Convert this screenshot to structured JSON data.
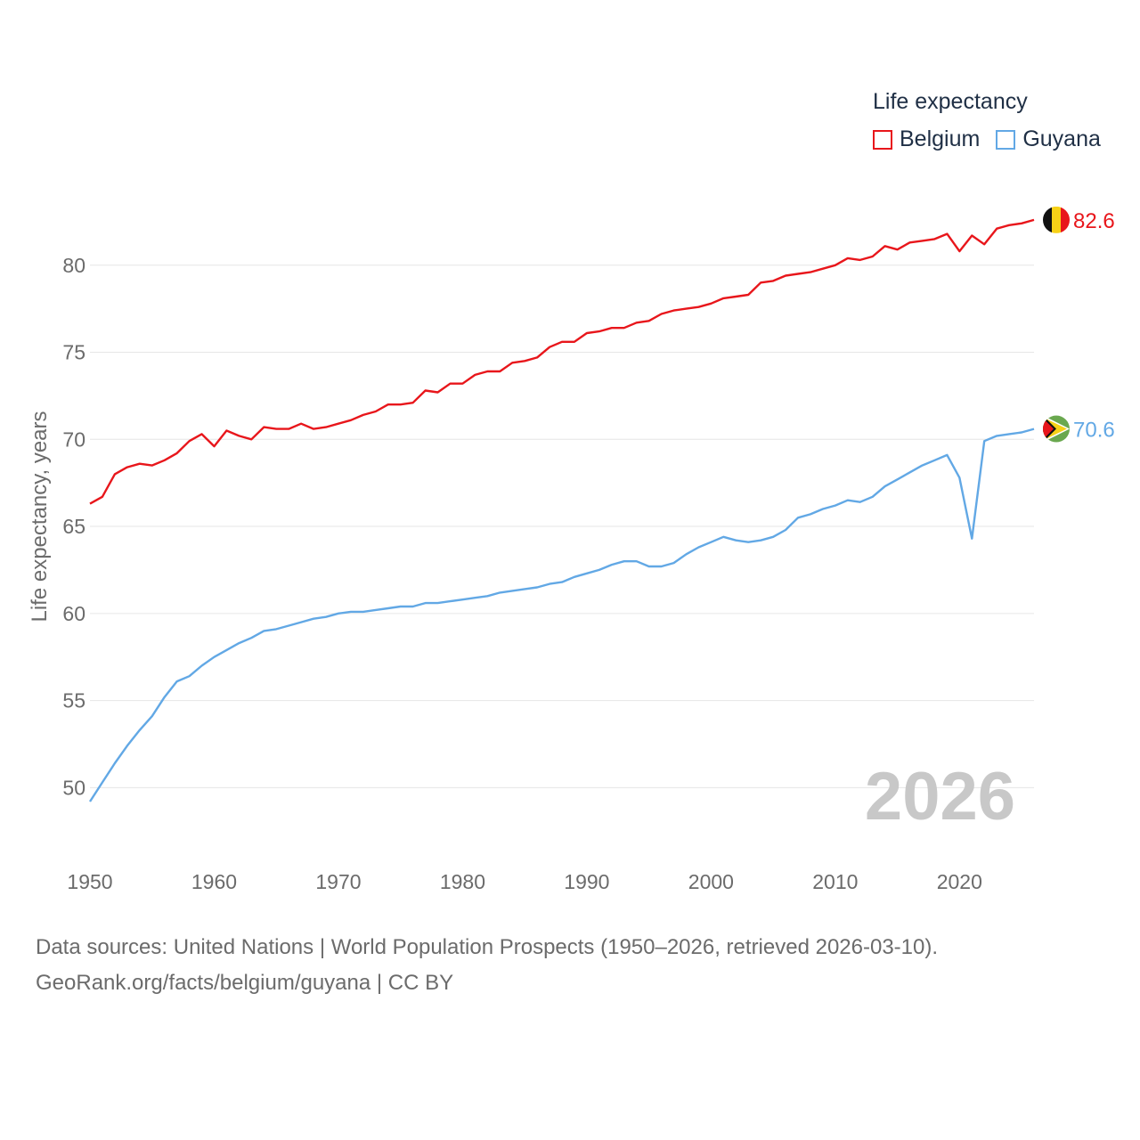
{
  "chart_data": {
    "type": "line",
    "legend_title": "Life expectancy",
    "ylabel": "Life expectancy, years",
    "xlabel": "",
    "ylim": [
      47,
      85
    ],
    "xlim": [
      1950,
      2026
    ],
    "yticks": [
      50,
      55,
      60,
      65,
      70,
      75,
      80
    ],
    "xticks": [
      1950,
      1960,
      1970,
      1980,
      1990,
      2000,
      2010,
      2020
    ],
    "year_label": "2026",
    "x": [
      1950,
      1951,
      1952,
      1953,
      1954,
      1955,
      1956,
      1957,
      1958,
      1959,
      1960,
      1961,
      1962,
      1963,
      1964,
      1965,
      1966,
      1967,
      1968,
      1969,
      1970,
      1971,
      1972,
      1973,
      1974,
      1975,
      1976,
      1977,
      1978,
      1979,
      1980,
      1981,
      1982,
      1983,
      1984,
      1985,
      1986,
      1987,
      1988,
      1989,
      1990,
      1991,
      1992,
      1993,
      1994,
      1995,
      1996,
      1997,
      1998,
      1999,
      2000,
      2001,
      2002,
      2003,
      2004,
      2005,
      2006,
      2007,
      2008,
      2009,
      2010,
      2011,
      2012,
      2013,
      2014,
      2015,
      2016,
      2017,
      2018,
      2019,
      2020,
      2021,
      2022,
      2023,
      2024,
      2025,
      2026
    ],
    "series": [
      {
        "name": "Belgium",
        "color": "#e8161b",
        "end_label": "82.6",
        "values": [
          66.3,
          66.7,
          68.0,
          68.4,
          68.6,
          68.5,
          68.8,
          69.2,
          69.9,
          70.3,
          69.6,
          70.5,
          70.2,
          70.0,
          70.7,
          70.6,
          70.6,
          70.9,
          70.6,
          70.7,
          70.9,
          71.1,
          71.4,
          71.6,
          72.0,
          72.0,
          72.1,
          72.8,
          72.7,
          73.2,
          73.2,
          73.7,
          73.9,
          73.9,
          74.4,
          74.5,
          74.7,
          75.3,
          75.6,
          75.6,
          76.1,
          76.2,
          76.4,
          76.4,
          76.7,
          76.8,
          77.2,
          77.4,
          77.5,
          77.6,
          77.8,
          78.1,
          78.2,
          78.3,
          79.0,
          79.1,
          79.4,
          79.5,
          79.6,
          79.8,
          80.0,
          80.4,
          80.3,
          80.5,
          81.1,
          80.9,
          81.3,
          81.4,
          81.5,
          81.8,
          80.8,
          81.7,
          81.2,
          82.1,
          82.3,
          82.4,
          82.6
        ]
      },
      {
        "name": "Guyana",
        "color": "#62a8e5",
        "end_label": "70.6",
        "values": [
          49.2,
          50.3,
          51.4,
          52.4,
          53.3,
          54.1,
          55.2,
          56.1,
          56.4,
          57.0,
          57.5,
          57.9,
          58.3,
          58.6,
          59.0,
          59.1,
          59.3,
          59.5,
          59.7,
          59.8,
          60.0,
          60.1,
          60.1,
          60.2,
          60.3,
          60.4,
          60.4,
          60.6,
          60.6,
          60.7,
          60.8,
          60.9,
          61.0,
          61.2,
          61.3,
          61.4,
          61.5,
          61.7,
          61.8,
          62.1,
          62.3,
          62.5,
          62.8,
          63.0,
          63.0,
          62.7,
          62.7,
          62.9,
          63.4,
          63.8,
          64.1,
          64.4,
          64.2,
          64.1,
          64.2,
          64.4,
          64.8,
          65.5,
          65.7,
          66.0,
          66.2,
          66.5,
          66.4,
          66.7,
          67.3,
          67.7,
          68.1,
          68.5,
          68.8,
          69.1,
          67.8,
          64.3,
          69.9,
          70.2,
          70.3,
          70.4,
          70.6
        ]
      }
    ]
  },
  "footer": {
    "source_line": "Data sources: United Nations | World Population Prospects (1950–2026, retrieved 2026-03-10).",
    "credit_line": "GeoRank.org/facts/belgium/guyana | CC BY"
  },
  "colors": {
    "axis_text": "#6b6b6b",
    "grid": "#e6e6e6",
    "year_label": "#c8c8c8",
    "legend_text": "#1f2f45",
    "belgium_flag": [
      "#111111",
      "#f7d117",
      "#e8161b"
    ],
    "guyana_flag": [
      "#6aa84f",
      "#ffffff",
      "#f7d117",
      "#111111",
      "#e8161b"
    ]
  }
}
